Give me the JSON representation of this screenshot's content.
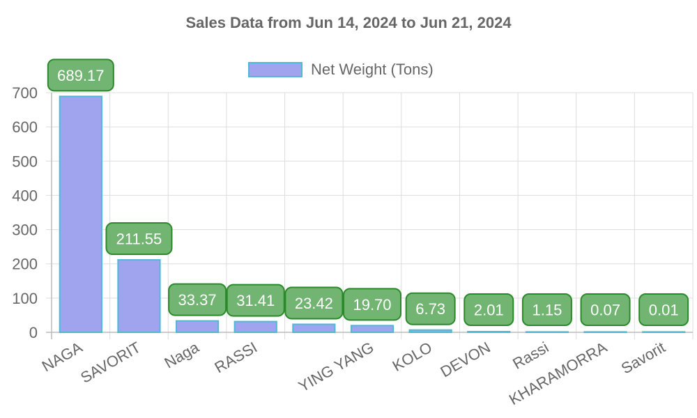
{
  "chart_data": {
    "type": "bar",
    "title": "Sales Data from Jun 14, 2024 to Jun 21, 2024",
    "categories": [
      "NAGA",
      "SAVORIT",
      "Naga",
      "RASSI",
      "",
      "YING YANG",
      "KOLO",
      "DEVON",
      "Rassi",
      "KHARAMORRA",
      "Savorit"
    ],
    "series": [
      {
        "name": "Net Weight (Tons)",
        "values": [
          689.17,
          211.55,
          33.37,
          31.41,
          23.42,
          19.7,
          6.73,
          2.01,
          1.15,
          0.07,
          0.01
        ],
        "labels": [
          "689.17",
          "211.55",
          "33.37",
          "31.41",
          "23.42",
          "19.70",
          "6.73",
          "2.01",
          "1.15",
          "0.07",
          "0.01"
        ]
      }
    ],
    "yticks": [
      "0",
      "100",
      "200",
      "300",
      "400",
      "500",
      "600",
      "700"
    ],
    "ylim": [
      0,
      700
    ],
    "grid": true,
    "legend_position": "top",
    "colors": {
      "bar_fill": "#a0a4ee",
      "bar_border": "#4fb8d4",
      "label_fill": "#72b572",
      "label_border": "#2a8a2a",
      "label_text": "#ffffff",
      "grid": "#dddddd",
      "text": "#666666"
    }
  }
}
